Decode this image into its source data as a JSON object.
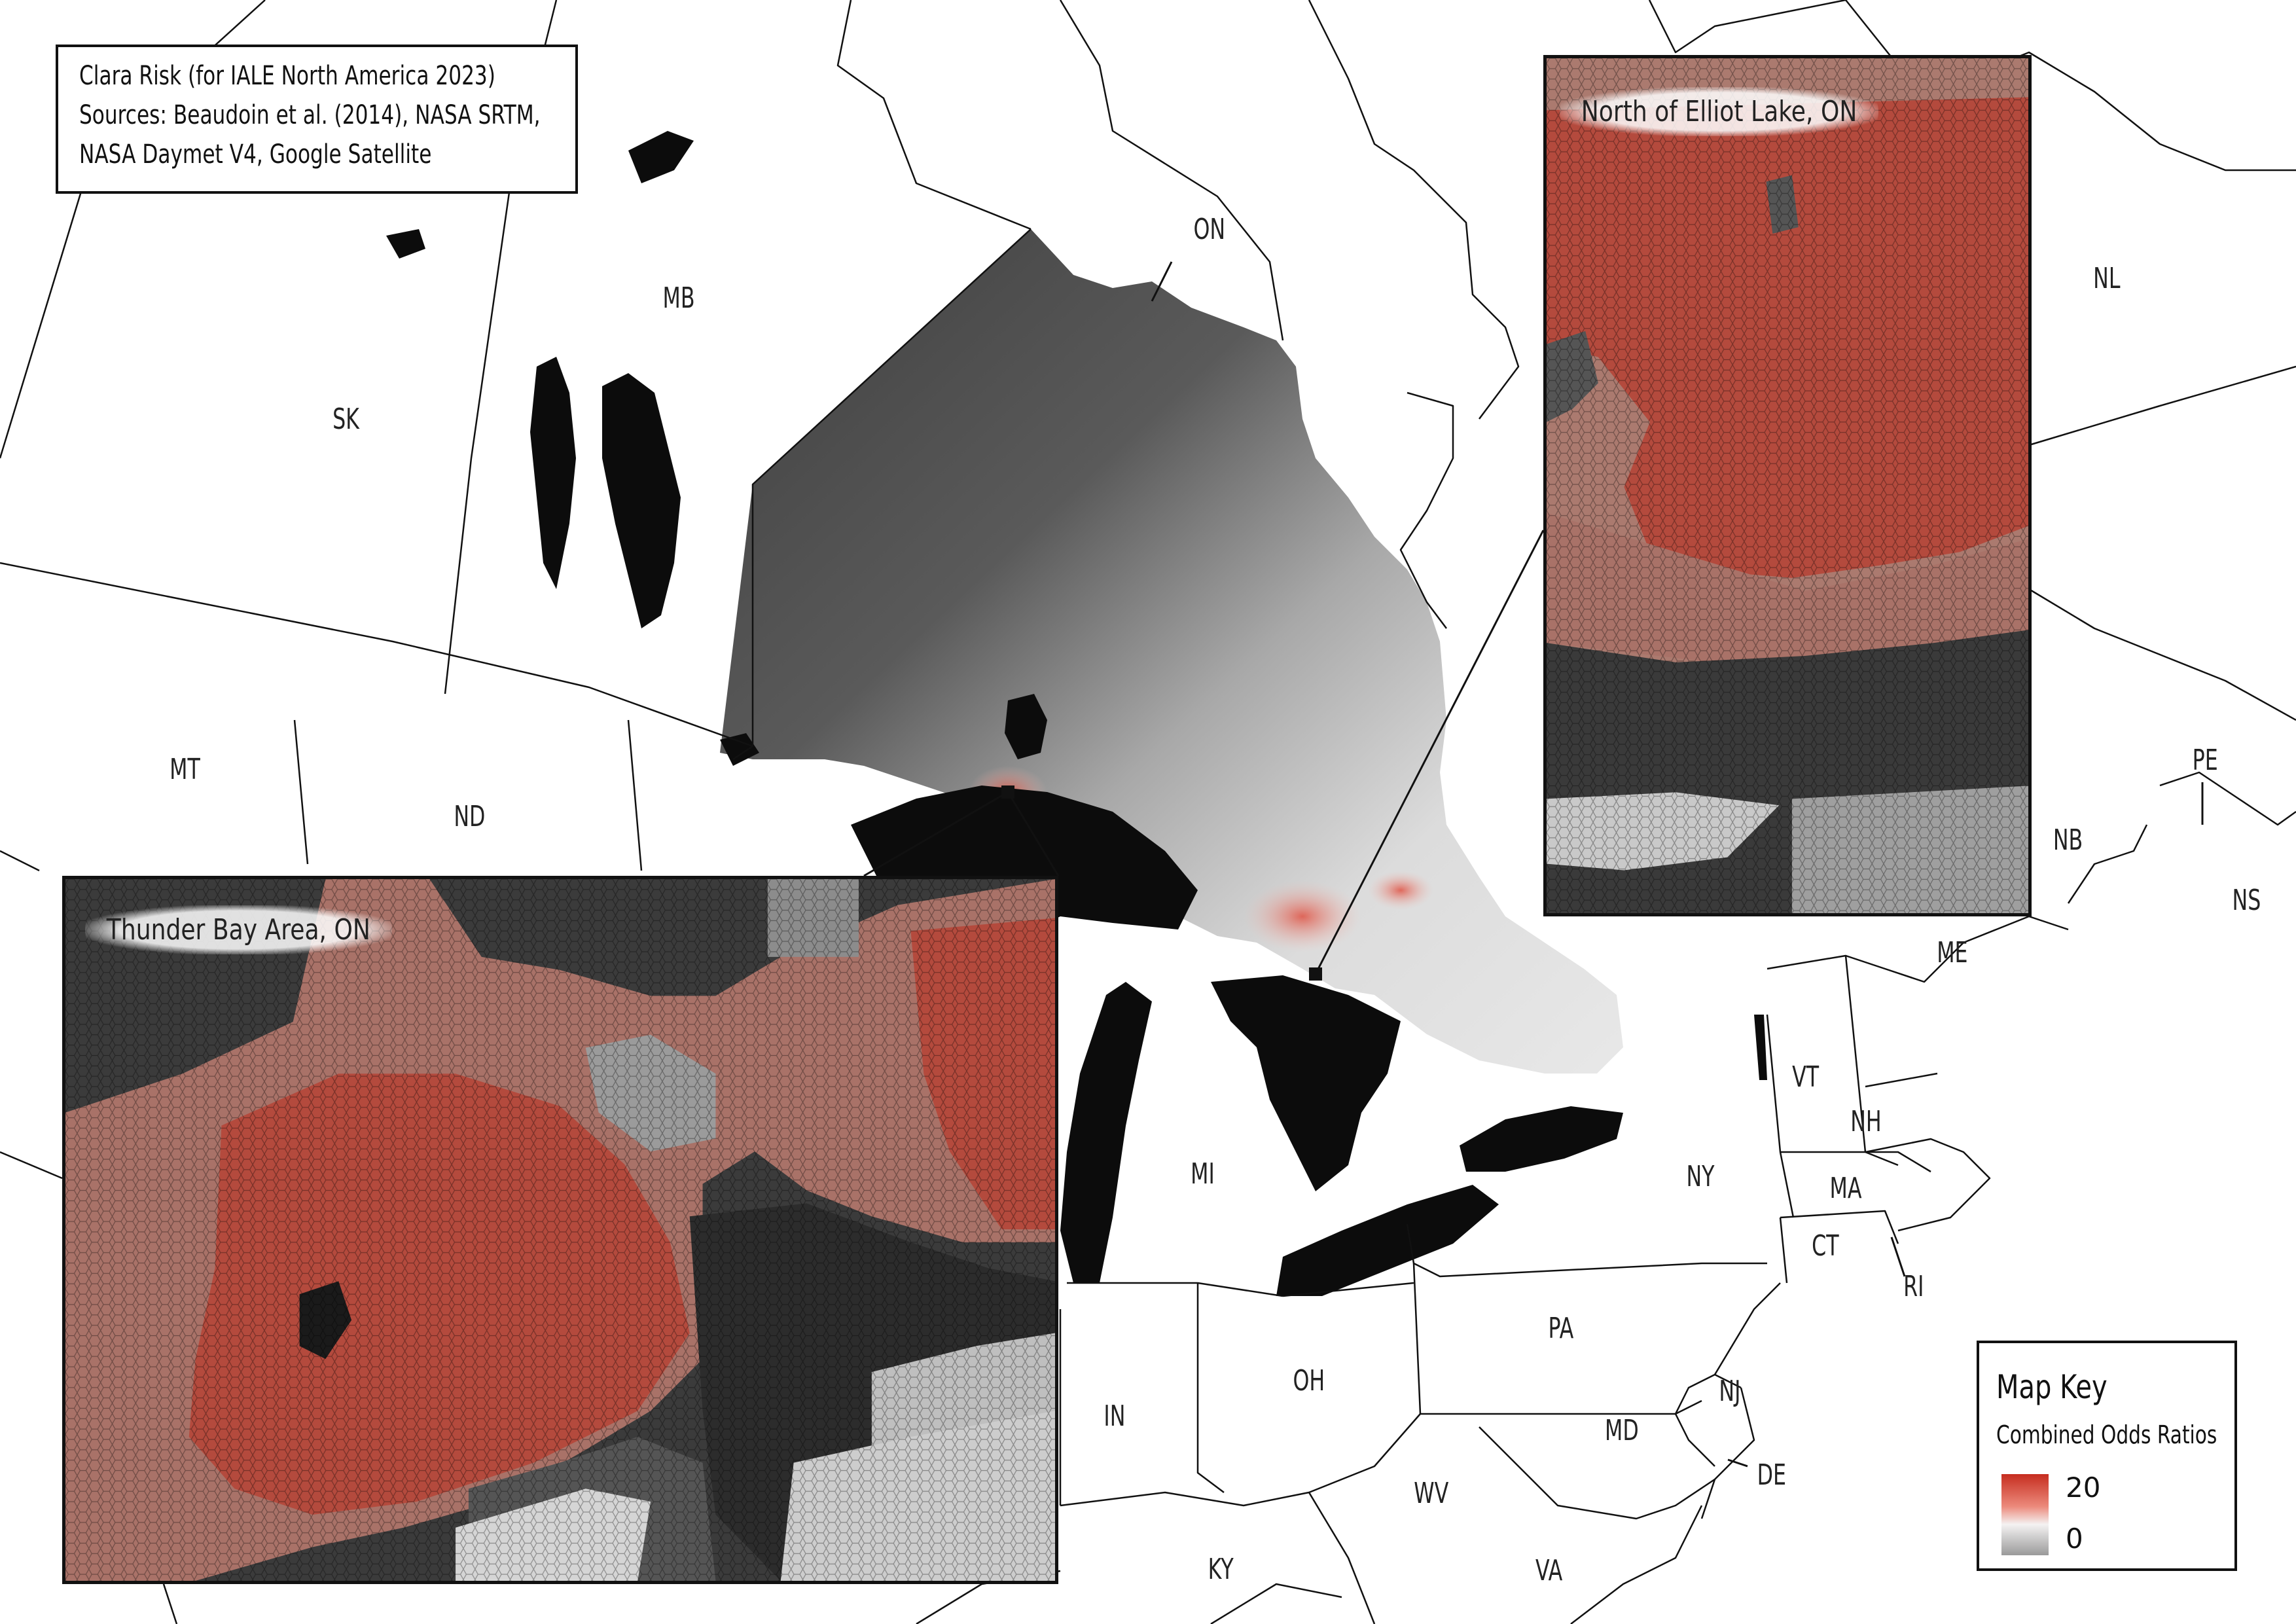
{
  "credits": {
    "line1": "Clara Risk (for IALE North America 2023)",
    "line2": "Sources: Beaudoin et al. (2014), NASA SRTM,",
    "line3": "NASA Daymet V4, Google Satellite"
  },
  "regions": {
    "SK": "SK",
    "MB": "MB",
    "ON": "ON",
    "NL": "NL",
    "MT": "MT",
    "ND": "ND",
    "PE": "PE",
    "NB": "NB",
    "NS": "NS",
    "ME": "ME",
    "VT": "VT",
    "NH": "NH",
    "MA": "MA",
    "CT": "CT",
    "RI": "RI",
    "NY": "NY",
    "MI": "MI",
    "PA": "PA",
    "NJ": "NJ",
    "OH": "OH",
    "IN": "IN",
    "MD": "MD",
    "DE": "DE",
    "WV": "WV",
    "KY": "KY",
    "VA": "VA"
  },
  "insets": {
    "thunder_bay": {
      "title": "Thunder Bay Area, ON"
    },
    "elliot_lake": {
      "title": "North of Elliot Lake, ON"
    }
  },
  "legend": {
    "title": "Map Key",
    "subtitle": "Combined Odds Ratios",
    "max_label": "20",
    "min_label": "0",
    "colors": {
      "high": "#c62d1f",
      "mid": "#f4f2f2",
      "low": "#9a9a9a"
    }
  }
}
